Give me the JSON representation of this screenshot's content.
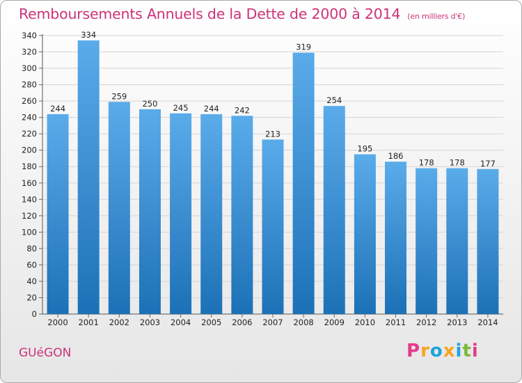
{
  "title": "Remboursements Annuels de la Dette de 2000 à 2014",
  "subtitle": "(en milliers d'€)",
  "town": "GUéGON",
  "logo": {
    "letters": [
      "P",
      "r",
      "o",
      "x",
      "i",
      "t",
      "i"
    ],
    "colors": [
      "#e63a8c",
      "#f6a522",
      "#1ea4dc",
      "#f6a522",
      "#1ea4dc",
      "#7cb83a",
      "#e63a8c"
    ]
  },
  "colors": {
    "accent": "#cc3377",
    "bar_light": "#5aabea",
    "bar_dark": "#1c71b6",
    "grid": "#d4d4d4"
  },
  "chart_data": {
    "type": "bar",
    "title": "Remboursements Annuels de la Dette de 2000 à 2014",
    "subtitle": "(en milliers d'€)",
    "categories": [
      "2000",
      "2001",
      "2002",
      "2003",
      "2004",
      "2005",
      "2006",
      "2007",
      "2008",
      "2009",
      "2010",
      "2011",
      "2012",
      "2013",
      "2014"
    ],
    "values": [
      244,
      334,
      259,
      250,
      245,
      244,
      242,
      213,
      319,
      254,
      195,
      186,
      178,
      178,
      177
    ],
    "ylim": [
      0,
      340
    ],
    "yticks": [
      0,
      20,
      40,
      60,
      80,
      100,
      120,
      140,
      160,
      180,
      200,
      220,
      240,
      260,
      280,
      300,
      320,
      340
    ],
    "grid": true
  }
}
